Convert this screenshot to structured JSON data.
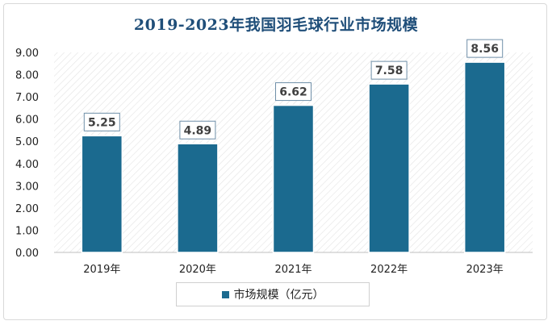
{
  "chart_data": {
    "type": "bar",
    "title": "2019-2023年我国羽毛球行业市场规模",
    "categories": [
      "2019年",
      "2020年",
      "2021年",
      "2022年",
      "2023年"
    ],
    "series": [
      {
        "name": "市场规模（亿元）",
        "values": [
          5.25,
          4.89,
          6.62,
          7.58,
          8.56
        ]
      }
    ],
    "data_labels": [
      "5.25",
      "4.89",
      "6.62",
      "7.58",
      "8.56"
    ],
    "y_ticks": [
      "0.00",
      "1.00",
      "2.00",
      "3.00",
      "4.00",
      "5.00",
      "6.00",
      "7.00",
      "8.00",
      "9.00"
    ],
    "ylim": [
      0,
      9
    ],
    "bar_color": "#1b6a8f",
    "grid": false,
    "plot_background": "diagonal-hatch",
    "legend_position": "bottom"
  }
}
